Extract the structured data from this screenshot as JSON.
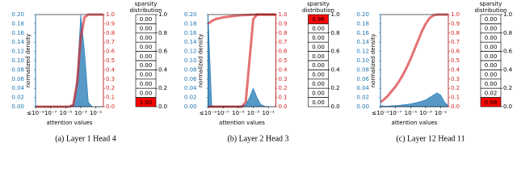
{
  "chart_data": [
    {
      "type": "density",
      "title": "(a) Layer 1 Head 4",
      "xlabel": "attention values",
      "ylabel": "normalized density",
      "log_x": true,
      "xlim": [
        1e-09,
        1
      ],
      "xticks": [
        {
          "value": 1e-09,
          "label": "≤10⁻⁹"
        },
        {
          "value": 1e-07,
          "label": "10⁻⁷"
        },
        {
          "value": 1e-05,
          "label": "10⁻⁵"
        },
        {
          "value": 0.001,
          "label": "10⁻³"
        },
        {
          "value": 0.1,
          "label": "10⁻¹"
        }
      ],
      "ylim": [
        0,
        0.2
      ],
      "yticks": [
        {
          "value": 0,
          "label": "0.00"
        },
        {
          "value": 0.02,
          "label": "0.02"
        },
        {
          "value": 0.04,
          "label": "0.04"
        },
        {
          "value": 0.06,
          "label": "0.06"
        },
        {
          "value": 0.08,
          "label": "0.08"
        },
        {
          "value": 0.1,
          "label": "0.10"
        },
        {
          "value": 0.12,
          "label": "0.12"
        },
        {
          "value": 0.14,
          "label": "0.14"
        },
        {
          "value": 0.16,
          "label": "0.16"
        },
        {
          "value": 0.18,
          "label": "0.18"
        },
        {
          "value": 0.2,
          "label": "0.20"
        }
      ],
      "y2lim": [
        0,
        1
      ],
      "y2ticks": [
        {
          "value": 0,
          "label": "0.0"
        },
        0.1,
        0.2,
        0.3,
        0.4,
        0.5,
        0.6,
        0.7,
        0.8,
        0.9,
        {
          "value": 1,
          "label": "1.0"
        }
      ],
      "x": [
        1e-09,
        3.16e-09,
        1e-08,
        3.16e-08,
        1e-07,
        3.16e-07,
        1e-06,
        3.16e-06,
        1e-05,
        3.16e-05,
        0.0001,
        0.000316,
        0.001,
        0.00316,
        0.01,
        0.0316,
        0.1,
        0.316,
        1
      ],
      "series": [
        {
          "color": "#1f77b4",
          "values": [
            0,
            0,
            0,
            0,
            0,
            0,
            0,
            0,
            0,
            0,
            0.005,
            0.06,
            0.2,
            0.12,
            0.01,
            0,
            0,
            0,
            0
          ]
        },
        {
          "color": "#d62728",
          "axis": "y2",
          "values": [
            0,
            0,
            0,
            0,
            0,
            0,
            0,
            0,
            0,
            0,
            0.02,
            0.25,
            0.75,
            0.97,
            1,
            1,
            1,
            1,
            1
          ]
        }
      ],
      "sparsity": {
        "title": "sparsity distribution",
        "color": "#ff0000",
        "bins": [
          0,
          0.1,
          0.2,
          0.3,
          0.4,
          0.5,
          0.6,
          0.7,
          0.8,
          0.9,
          1
        ],
        "values": [
          1,
          0,
          0,
          0,
          0,
          0,
          0,
          0,
          0,
          0
        ],
        "value_labels": [
          "1.00",
          "0.00",
          "0.00",
          "0.00",
          "0.00",
          "0.00",
          "0.00",
          "0.00",
          "0.00",
          "0.00"
        ],
        "ticks": [
          {
            "value": 0,
            "label": "0.0"
          },
          0.2,
          0.4,
          0.6,
          0.8,
          {
            "value": 1,
            "label": "1.0"
          }
        ]
      }
    },
    {
      "type": "density",
      "title": "(b) Layer 2 Head 3",
      "xlabel": "attention values",
      "ylabel": "normalized density",
      "log_x": true,
      "xlim": [
        1e-09,
        1
      ],
      "xticks": [
        {
          "value": 1e-09,
          "label": "≤10⁻⁹"
        },
        {
          "value": 1e-07,
          "label": "10⁻⁷"
        },
        {
          "value": 1e-05,
          "label": "10⁻⁵"
        },
        {
          "value": 0.001,
          "label": "10⁻³"
        },
        {
          "value": 0.1,
          "label": "10⁻¹"
        }
      ],
      "ylim": [
        0,
        0.2
      ],
      "yticks": [
        {
          "value": 0,
          "label": "0.00"
        },
        {
          "value": 0.02,
          "label": "0.02"
        },
        {
          "value": 0.04,
          "label": "0.04"
        },
        {
          "value": 0.06,
          "label": "0.06"
        },
        {
          "value": 0.08,
          "label": "0.08"
        },
        {
          "value": 0.1,
          "label": "0.10"
        },
        {
          "value": 0.12,
          "label": "0.12"
        },
        {
          "value": 0.14,
          "label": "0.14"
        },
        {
          "value": 0.16,
          "label": "0.16"
        },
        {
          "value": 0.18,
          "label": "0.18"
        },
        {
          "value": 0.2,
          "label": "0.20"
        }
      ],
      "y2lim": [
        0,
        1
      ],
      "y2ticks": [
        {
          "value": 0,
          "label": "0.0"
        },
        0.1,
        0.2,
        0.3,
        0.4,
        0.5,
        0.6,
        0.7,
        0.8,
        0.9,
        {
          "value": 1,
          "label": "1.0"
        }
      ],
      "x": [
        1e-09,
        3.16e-09,
        1e-08,
        3.16e-08,
        1e-07,
        3.16e-07,
        1e-06,
        3.16e-06,
        1e-05,
        3.16e-05,
        0.0001,
        0.000316,
        0.001,
        0.00316,
        0.01,
        0.0316,
        0.1,
        0.316,
        1
      ],
      "series": [
        {
          "color": "#1f77b4",
          "values": [
            0.2,
            0.002,
            0.001,
            0.001,
            0.001,
            0.001,
            0.001,
            0.001,
            0.001,
            0.002,
            0.005,
            0.02,
            0.04,
            0.02,
            0.005,
            0.001,
            0,
            0,
            0
          ]
        },
        {
          "color": "#d62728",
          "axis": "y2",
          "values": [
            0.9,
            0.93,
            0.95,
            0.96,
            0.97,
            0.975,
            0.98,
            0.985,
            0.99,
            0.993,
            0.995,
            0.997,
            0.999,
            1,
            1,
            1,
            1,
            1,
            1
          ]
        },
        {
          "color": "#d62728",
          "axis": "y2",
          "values": [
            0,
            0,
            0,
            0,
            0,
            0,
            0,
            0,
            0,
            0,
            0.05,
            0.5,
            0.95,
            1,
            1,
            1,
            1,
            1,
            1
          ]
        }
      ],
      "sparsity": {
        "title": "sparsity distribution",
        "color": "#ff0000",
        "bins": [
          0,
          0.1,
          0.2,
          0.3,
          0.4,
          0.5,
          0.6,
          0.7,
          0.8,
          0.9,
          1
        ],
        "values": [
          0,
          0,
          0,
          0,
          0,
          0,
          0,
          0,
          0,
          0.96
        ],
        "value_labels": [
          "0.00",
          "0.00",
          "0.00",
          "0.00",
          "0.00",
          "0.00",
          "0.00",
          "0.00",
          "0.00",
          "0.96"
        ],
        "ticks": [
          {
            "value": 0,
            "label": "0.0"
          },
          0.2,
          0.4,
          0.6,
          0.8,
          {
            "value": 1,
            "label": "1.0"
          }
        ]
      }
    },
    {
      "type": "density",
      "title": "(c) Layer 12 Head 11",
      "xlabel": "attention values",
      "ylabel": "normalized density",
      "log_x": true,
      "xlim": [
        1e-09,
        1
      ],
      "xticks": [
        {
          "value": 1e-09,
          "label": "≤10⁻⁹"
        },
        {
          "value": 1e-07,
          "label": "10⁻⁷"
        },
        {
          "value": 1e-05,
          "label": "10⁻⁵"
        },
        {
          "value": 0.001,
          "label": "10⁻³"
        },
        {
          "value": 0.1,
          "label": "10⁻¹"
        }
      ],
      "ylim": [
        0,
        0.2
      ],
      "yticks": [
        {
          "value": 0,
          "label": "0.00"
        },
        {
          "value": 0.02,
          "label": "0.02"
        },
        {
          "value": 0.04,
          "label": "0.04"
        },
        {
          "value": 0.06,
          "label": "0.06"
        },
        {
          "value": 0.08,
          "label": "0.08"
        },
        {
          "value": 0.1,
          "label": "0.10"
        },
        {
          "value": 0.12,
          "label": "0.12"
        },
        {
          "value": 0.14,
          "label": "0.14"
        },
        {
          "value": 0.16,
          "label": "0.16"
        },
        {
          "value": 0.18,
          "label": "0.18"
        },
        {
          "value": 0.2,
          "label": "0.20"
        }
      ],
      "y2lim": [
        0,
        1
      ],
      "y2ticks": [
        {
          "value": 0,
          "label": "0.0"
        },
        0.1,
        0.2,
        0.3,
        0.4,
        0.5,
        0.6,
        0.7,
        0.8,
        0.9,
        {
          "value": 1,
          "label": "1.0"
        }
      ],
      "x": [
        1e-09,
        3.16e-09,
        1e-08,
        3.16e-08,
        1e-07,
        3.16e-07,
        1e-06,
        3.16e-06,
        1e-05,
        3.16e-05,
        0.0001,
        0.000316,
        0.001,
        0.00316,
        0.01,
        0.0316,
        0.1,
        0.316,
        1
      ],
      "series": [
        {
          "color": "#1f77b4",
          "values": [
            0.002,
            0.001,
            0.001,
            0.002,
            0.002,
            0.003,
            0.004,
            0.005,
            0.006,
            0.008,
            0.01,
            0.012,
            0.015,
            0.02,
            0.025,
            0.03,
            0.025,
            0.01,
            0.002
          ]
        },
        {
          "color": "#d62728",
          "axis": "y2",
          "values": [
            0.05,
            0.08,
            0.12,
            0.17,
            0.22,
            0.28,
            0.35,
            0.43,
            0.52,
            0.62,
            0.72,
            0.82,
            0.9,
            0.96,
            0.99,
            1,
            1,
            1,
            1
          ]
        }
      ],
      "sparsity": {
        "title": "sparsity distribution",
        "color": "#ff0000",
        "bins": [
          0,
          0.1,
          0.2,
          0.3,
          0.4,
          0.5,
          0.6,
          0.7,
          0.8,
          0.9,
          1
        ],
        "values": [
          0.98,
          0.02,
          0,
          0,
          0,
          0,
          0,
          0,
          0,
          0
        ],
        "value_labels": [
          "0.98",
          "0.02",
          "0.00",
          "0.00",
          "0.00",
          "0.00",
          "0.00",
          "0.00",
          "0.00",
          "0.00"
        ],
        "ticks": [
          {
            "value": 0,
            "label": "0.0"
          },
          0.2,
          0.4,
          0.6,
          0.8,
          {
            "value": 1,
            "label": "1.0"
          }
        ]
      }
    }
  ]
}
